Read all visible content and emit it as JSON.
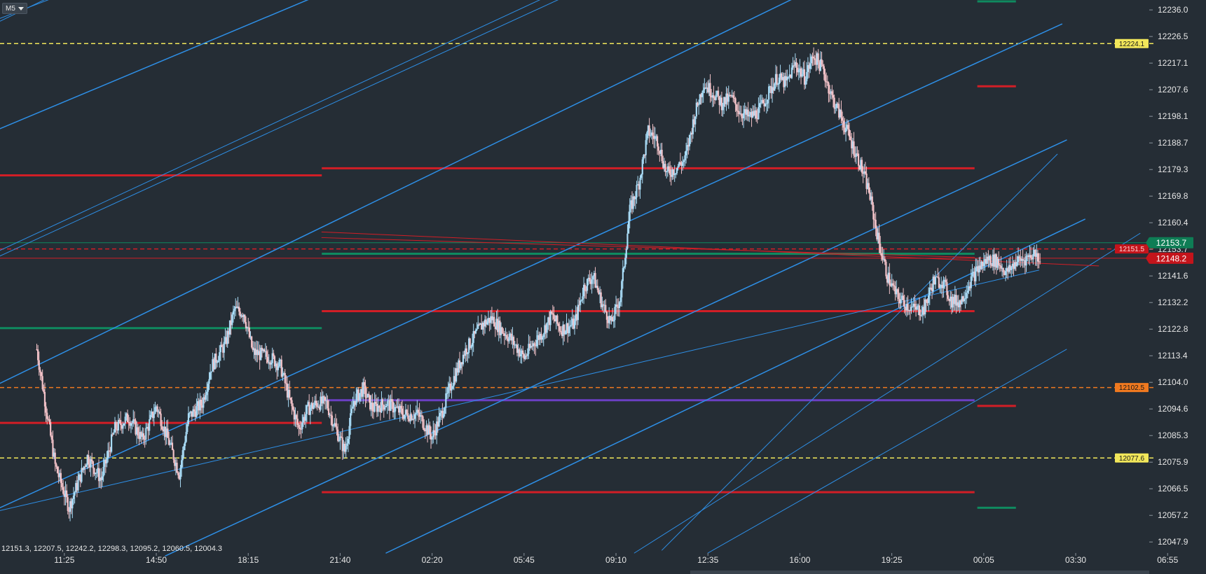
{
  "toolbar": {
    "timeframe": "M5"
  },
  "ohlc_readout": "12151.3, 12207.5, 12242.2, 12298.3, 12095.2, 12060.5, 12004.3",
  "colors": {
    "background": "#252d35",
    "support_resistance_red": "#d21e26",
    "green_level": "#0f8a5f",
    "channel_blue": "#2e8fe6",
    "dashed_yellow": "#f2e75a",
    "dashed_orange": "#f0791f",
    "purple_level": "#6b3fc4",
    "candle_up": "#a9dcf7",
    "candle_down": "#f2c2c8"
  },
  "chart_data": {
    "type": "candlestick",
    "timeframe": "M5",
    "y_axis": {
      "ticks": [
        12236.0,
        12226.5,
        12217.1,
        12207.6,
        12198.1,
        12188.7,
        12179.3,
        12169.8,
        12160.4,
        12153.7,
        12141.6,
        12132.2,
        12122.8,
        12113.4,
        12104.0,
        12094.6,
        12085.3,
        12075.9,
        12066.5,
        12057.2,
        12047.9
      ],
      "ylim": [
        12044.0,
        12239.5
      ]
    },
    "x_axis": {
      "ticks": [
        "11:25",
        "14:50",
        "18:15",
        "21:40",
        "02:20",
        "05:45",
        "09:10",
        "12:35",
        "16:00",
        "19:25",
        "00:05",
        "03:30",
        "06:55"
      ],
      "xlim": [
        -0.7,
        11.8
      ]
    },
    "price_path": [
      [
        -0.3,
        12116
      ],
      [
        -0.1,
        12075
      ],
      [
        0.05,
        12060
      ],
      [
        0.25,
        12078
      ],
      [
        0.4,
        12070
      ],
      [
        0.55,
        12088
      ],
      [
        0.7,
        12092
      ],
      [
        0.85,
        12084
      ],
      [
        1.0,
        12096
      ],
      [
        1.15,
        12082
      ],
      [
        1.25,
        12072
      ],
      [
        1.35,
        12092
      ],
      [
        1.5,
        12097
      ],
      [
        1.6,
        12110
      ],
      [
        1.75,
        12118
      ],
      [
        1.85,
        12130
      ],
      [
        1.95,
        12129
      ],
      [
        2.05,
        12115
      ],
      [
        2.25,
        12113
      ],
      [
        2.35,
        12110
      ],
      [
        2.45,
        12098
      ],
      [
        2.55,
        12088
      ],
      [
        2.65,
        12095
      ],
      [
        2.75,
        12097
      ],
      [
        2.85,
        12097
      ],
      [
        2.95,
        12088
      ],
      [
        3.05,
        12080
      ],
      [
        3.15,
        12098
      ],
      [
        3.25,
        12102
      ],
      [
        3.35,
        12095
      ],
      [
        3.5,
        12097
      ],
      [
        3.7,
        12093
      ],
      [
        3.85,
        12093
      ],
      [
        4.0,
        12085
      ],
      [
        4.1,
        12093
      ],
      [
        4.2,
        12103
      ],
      [
        4.35,
        12115
      ],
      [
        4.45,
        12120
      ],
      [
        4.55,
        12125
      ],
      [
        4.65,
        12127
      ],
      [
        4.75,
        12123
      ],
      [
        4.85,
        12120
      ],
      [
        5.0,
        12113
      ],
      [
        5.1,
        12118
      ],
      [
        5.2,
        12122
      ],
      [
        5.3,
        12128
      ],
      [
        5.4,
        12123
      ],
      [
        5.55,
        12125
      ],
      [
        5.65,
        12138
      ],
      [
        5.75,
        12142
      ],
      [
        5.85,
        12132
      ],
      [
        5.95,
        12125
      ],
      [
        6.05,
        12135
      ],
      [
        6.15,
        12165
      ],
      [
        6.25,
        12175
      ],
      [
        6.35,
        12193
      ],
      [
        6.45,
        12190
      ],
      [
        6.55,
        12178
      ],
      [
        6.65,
        12180
      ],
      [
        6.75,
        12183
      ],
      [
        6.85,
        12198
      ],
      [
        6.95,
        12210
      ],
      [
        7.05,
        12207
      ],
      [
        7.15,
        12203
      ],
      [
        7.25,
        12205
      ],
      [
        7.35,
        12200
      ],
      [
        7.45,
        12198
      ],
      [
        7.55,
        12200
      ],
      [
        7.65,
        12206
      ],
      [
        7.75,
        12212
      ],
      [
        7.85,
        12210
      ],
      [
        7.95,
        12217
      ],
      [
        8.05,
        12212
      ],
      [
        8.15,
        12220
      ],
      [
        8.25,
        12215
      ],
      [
        8.35,
        12205
      ],
      [
        8.45,
        12198
      ],
      [
        8.55,
        12190
      ],
      [
        8.65,
        12182
      ],
      [
        8.75,
        12172
      ],
      [
        8.85,
        12155
      ],
      [
        8.95,
        12142
      ],
      [
        9.05,
        12135
      ],
      [
        9.15,
        12132
      ],
      [
        9.25,
        12130
      ],
      [
        9.35,
        12130
      ],
      [
        9.45,
        12140
      ],
      [
        9.55,
        12140
      ],
      [
        9.65,
        12133
      ],
      [
        9.75,
        12133
      ],
      [
        9.85,
        12140
      ],
      [
        9.95,
        12145
      ],
      [
        10.05,
        12148
      ],
      [
        10.15,
        12147
      ],
      [
        10.25,
        12143
      ],
      [
        10.35,
        12147
      ],
      [
        10.45,
        12148
      ],
      [
        10.55,
        12150
      ],
      [
        10.62,
        12148
      ]
    ],
    "horizontal_levels": [
      {
        "value": 12224.1,
        "style": "dashed",
        "color": "yellow",
        "label": "12224.1",
        "x_start": -0.7
      },
      {
        "value": 12102.5,
        "style": "dashed",
        "color": "orange",
        "label": "12102.5",
        "x_start": -0.7
      },
      {
        "value": 12077.6,
        "style": "dashed",
        "color": "yellow",
        "label": "12077.6",
        "x_start": -0.7
      },
      {
        "value": 12151.5,
        "style": "dashed",
        "color": "red",
        "label": "12151.5",
        "x_start": -0.7
      },
      {
        "value": 12153.7,
        "style": "solid",
        "color": "green",
        "label": "12153.7",
        "x_start": -0.7
      },
      {
        "value": 12148.2,
        "style": "solid",
        "color": "red",
        "label": "12148.2",
        "x_start": -0.7
      },
      {
        "value": 12177.5,
        "style": "solid",
        "color": "red",
        "x_start": -0.7,
        "x_end": 2.8
      },
      {
        "value": 12123.5,
        "style": "solid",
        "color": "green",
        "x_start": -0.7,
        "x_end": 2.8
      },
      {
        "value": 12090.0,
        "style": "solid",
        "color": "red",
        "x_start": -0.7,
        "x_end": 2.8
      },
      {
        "value": 12180.0,
        "style": "solid",
        "color": "red",
        "x_start": 2.8,
        "x_end": 9.9
      },
      {
        "value": 12149.8,
        "style": "solid",
        "color": "green",
        "x_start": 2.8,
        "x_end": 9.9
      },
      {
        "value": 12129.5,
        "style": "solid",
        "color": "red",
        "x_start": 2.8,
        "x_end": 9.9
      },
      {
        "value": 12098.0,
        "style": "solid",
        "color": "purple",
        "x_start": 2.8,
        "x_end": 9.9
      },
      {
        "value": 12065.5,
        "style": "solid",
        "color": "red",
        "x_start": 2.8,
        "x_end": 9.9
      },
      {
        "value": 12239.0,
        "style": "solid",
        "color": "green",
        "x_start": 9.93,
        "x_end": 10.35
      },
      {
        "value": 12209.0,
        "style": "solid",
        "color": "red",
        "x_start": 9.93,
        "x_end": 10.35
      },
      {
        "value": 12096.0,
        "style": "solid",
        "color": "red",
        "x_start": 9.93,
        "x_end": 10.35
      },
      {
        "value": 12060.0,
        "style": "solid",
        "color": "green",
        "x_start": 9.93,
        "x_end": 10.35
      }
    ],
    "trend_lines": [
      {
        "from": [
          -0.7,
          12233
        ],
        "to": [
          0.1,
          12243
        ],
        "color": "blue",
        "width": 1
      },
      {
        "from": [
          -0.7,
          12232
        ],
        "to": [
          0.0,
          12243
        ],
        "color": "blue",
        "width": 1
      },
      {
        "from": [
          -0.7,
          12194
        ],
        "to": [
          2.9,
          12243
        ],
        "color": "blue",
        "width": 1.5
      },
      {
        "from": [
          -0.7,
          12149
        ],
        "to": [
          5.6,
          12243
        ],
        "color": "blue",
        "width": 1
      },
      {
        "from": [
          -0.7,
          12151
        ],
        "to": [
          5.4,
          12243
        ],
        "color": "blue",
        "width": 1
      },
      {
        "from": [
          -0.7,
          12104
        ],
        "to": [
          8.12,
          12243
        ],
        "color": "blue",
        "width": 1.5
      },
      {
        "from": [
          -0.7,
          12060
        ],
        "to": [
          10.85,
          12231
        ],
        "color": "blue",
        "width": 1.5
      },
      {
        "from": [
          1.1,
          12043
        ],
        "to": [
          10.9,
          12190
        ],
        "color": "blue",
        "width": 1.5
      },
      {
        "from": [
          -0.7,
          12059
        ],
        "to": [
          10.6,
          12144
        ],
        "color": "blue",
        "width": 1
      },
      {
        "from": [
          3.5,
          12044
        ],
        "to": [
          11.1,
          12162
        ],
        "color": "blue",
        "width": 1.5
      },
      {
        "from": [
          6.5,
          12045
        ],
        "to": [
          10.8,
          12185
        ],
        "color": "blue",
        "width": 1
      },
      {
        "from": [
          6.2,
          12044
        ],
        "to": [
          11.7,
          12157
        ],
        "color": "blue",
        "width": 1
      },
      {
        "from": [
          7.0,
          12044
        ],
        "to": [
          10.9,
          12116
        ],
        "color": "blue",
        "width": 1
      },
      {
        "from": [
          2.8,
          12157.5
        ],
        "to": [
          11.25,
          12145.5
        ],
        "color": "red",
        "width": 1
      },
      {
        "from": [
          2.8,
          12155.5
        ],
        "to": [
          9.9,
          12148.5
        ],
        "color": "red",
        "width": 1
      }
    ]
  }
}
